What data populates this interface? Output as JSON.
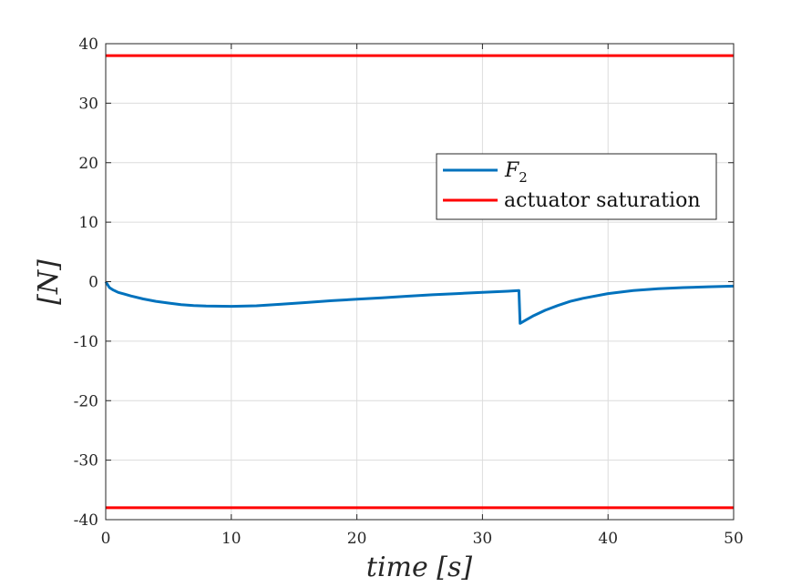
{
  "chart_data": {
    "type": "line",
    "title": "",
    "xlabel": "time [s]",
    "ylabel": "[N]",
    "xlim": [
      0,
      50
    ],
    "ylim": [
      -40,
      40
    ],
    "xticks": [
      "0",
      "10",
      "20",
      "30",
      "40",
      "50"
    ],
    "yticks": [
      "40",
      "30",
      "20",
      "10",
      "0",
      "-10",
      "-20",
      "-30",
      "-40"
    ],
    "grid": true,
    "legend_position": "right",
    "series": [
      {
        "name": "F",
        "name_subscript": "2",
        "color": "#0072BD",
        "x": [
          0,
          0.3,
          0.6,
          1,
          1.5,
          2,
          3,
          4,
          5,
          6,
          7,
          8,
          10,
          12,
          14,
          16,
          18,
          20,
          22,
          24,
          26,
          28,
          30,
          32,
          32.9,
          33.0,
          33.5,
          34,
          35,
          36,
          37,
          38,
          40,
          42,
          44,
          46,
          48,
          50
        ],
        "y": [
          0,
          -1.0,
          -1.4,
          -1.8,
          -2.1,
          -2.4,
          -2.9,
          -3.3,
          -3.6,
          -3.85,
          -4.0,
          -4.1,
          -4.15,
          -4.05,
          -3.8,
          -3.5,
          -3.2,
          -2.95,
          -2.7,
          -2.45,
          -2.2,
          -2.0,
          -1.8,
          -1.6,
          -1.5,
          -7.0,
          -6.4,
          -5.8,
          -4.8,
          -4.0,
          -3.3,
          -2.8,
          -2.0,
          -1.5,
          -1.2,
          -1.0,
          -0.85,
          -0.75
        ]
      },
      {
        "name": "actuator saturation",
        "color": "#FF0000",
        "x": [
          0,
          50
        ],
        "y": [
          38,
          38
        ]
      },
      {
        "name": "",
        "color": "#FF0000",
        "x": [
          0,
          50
        ],
        "y": [
          -38,
          -38
        ]
      }
    ]
  }
}
